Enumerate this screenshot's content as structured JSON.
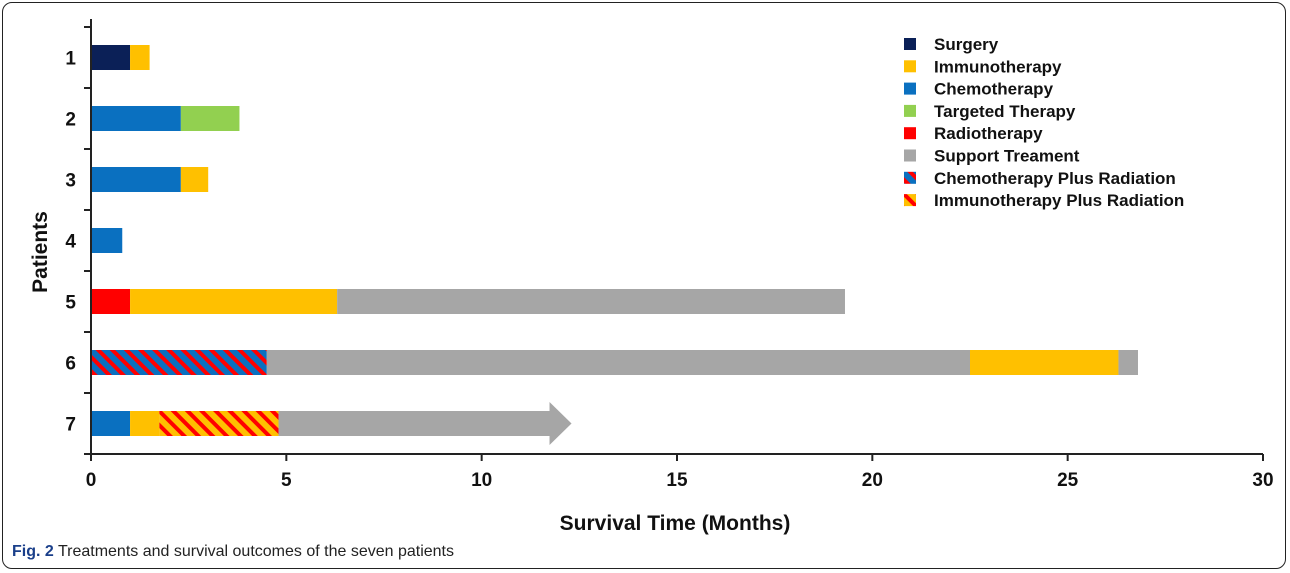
{
  "caption": {
    "fig_label": "Fig. 2",
    "text": "Treatments and survival outcomes of the seven patients"
  },
  "chart_data": {
    "type": "bar",
    "orientation": "horizontal",
    "stacked": true,
    "title": "",
    "xlabel": "Survival Time (Months)",
    "ylabel": "Patients",
    "xlim": [
      0,
      30
    ],
    "xticks": [
      0,
      5,
      10,
      15,
      20,
      25,
      30
    ],
    "grid": false,
    "legend_position": "top-right",
    "categories": [
      "1",
      "2",
      "3",
      "4",
      "5",
      "6",
      "7"
    ],
    "treatments": [
      {
        "key": "surgery",
        "name": "Surgery",
        "color": "#0b2057"
      },
      {
        "key": "immuno",
        "name": "Immunotherapy",
        "color": "#ffc000"
      },
      {
        "key": "chemo",
        "name": "Chemotherapy",
        "color": "#0a70c0"
      },
      {
        "key": "targeted",
        "name": "Targeted Therapy",
        "color": "#92d050"
      },
      {
        "key": "radio",
        "name": "Radiotherapy",
        "color": "#ff0000"
      },
      {
        "key": "support",
        "name": "Support Treament",
        "color": "#a6a6a6"
      },
      {
        "key": "chemo_rad",
        "name": "Chemotherapy Plus Radiation",
        "color": "#0a70c0",
        "stripe": "#ff0000"
      },
      {
        "key": "immuno_rad",
        "name": "Immunotherapy Plus Radiation",
        "color": "#ffc000",
        "stripe": "#ff0000"
      }
    ],
    "patients": [
      {
        "patient": "1",
        "segments": [
          {
            "t": "surgery",
            "start": 0,
            "end": 1.0
          },
          {
            "t": "immuno",
            "start": 1.0,
            "end": 1.5
          }
        ]
      },
      {
        "patient": "2",
        "segments": [
          {
            "t": "chemo",
            "start": 0,
            "end": 2.3
          },
          {
            "t": "targeted",
            "start": 2.3,
            "end": 3.8
          }
        ]
      },
      {
        "patient": "3",
        "segments": [
          {
            "t": "chemo",
            "start": 0,
            "end": 2.3
          },
          {
            "t": "immuno",
            "start": 2.3,
            "end": 3.0
          }
        ]
      },
      {
        "patient": "4",
        "segments": [
          {
            "t": "chemo",
            "start": 0,
            "end": 0.8
          }
        ]
      },
      {
        "patient": "5",
        "segments": [
          {
            "t": "radio",
            "start": 0,
            "end": 1.0
          },
          {
            "t": "immuno",
            "start": 1.0,
            "end": 6.3
          },
          {
            "t": "support",
            "start": 6.3,
            "end": 19.3
          }
        ]
      },
      {
        "patient": "6",
        "segments": [
          {
            "t": "chemo_rad",
            "start": 0,
            "end": 4.5
          },
          {
            "t": "support",
            "start": 4.5,
            "end": 22.5
          },
          {
            "t": "immuno",
            "start": 22.5,
            "end": 26.3
          },
          {
            "t": "support",
            "start": 26.3,
            "end": 26.8
          }
        ]
      },
      {
        "patient": "7",
        "ongoing": true,
        "segments": [
          {
            "t": "chemo",
            "start": 0,
            "end": 1.0
          },
          {
            "t": "immuno",
            "start": 1.0,
            "end": 1.75
          },
          {
            "t": "immuno_rad",
            "start": 1.75,
            "end": 4.8
          },
          {
            "t": "support",
            "start": 4.8,
            "end": 12.3
          }
        ]
      }
    ]
  }
}
